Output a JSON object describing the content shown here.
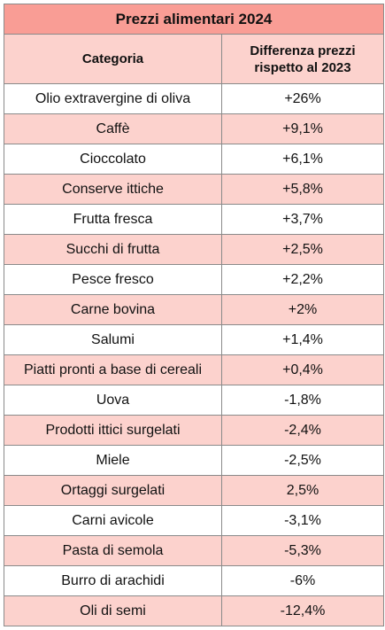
{
  "title": "Prezzi alimentari 2024",
  "headers": {
    "category": "Categoria",
    "difference_line1": "Differenza prezzi",
    "difference_line2": "rispetto al 2023"
  },
  "rows": [
    {
      "category": "Olio extravergine di oliva",
      "difference": "+26%"
    },
    {
      "category": "Caffè",
      "difference": "+9,1%"
    },
    {
      "category": "Cioccolato",
      "difference": "+6,1%"
    },
    {
      "category": "Conserve ittiche",
      "difference": "+5,8%"
    },
    {
      "category": "Frutta fresca",
      "difference": "+3,7%"
    },
    {
      "category": "Succhi di frutta",
      "difference": "+2,5%"
    },
    {
      "category": "Pesce fresco",
      "difference": "+2,2%"
    },
    {
      "category": "Carne bovina",
      "difference": "+2%"
    },
    {
      "category": "Salumi",
      "difference": "+1,4%"
    },
    {
      "category": "Piatti pronti a base di cereali",
      "difference": "+0,4%"
    },
    {
      "category": "Uova",
      "difference": "-1,8%"
    },
    {
      "category": "Prodotti ittici surgelati",
      "difference": "-2,4%"
    },
    {
      "category": "Miele",
      "difference": "-2,5%"
    },
    {
      "category": "Ortaggi surgelati",
      "difference": "2,5%"
    },
    {
      "category": "Carni avicole",
      "difference": "-3,1%"
    },
    {
      "category": "Pasta di semola",
      "difference": "-5,3%"
    },
    {
      "category": "Burro di arachidi",
      "difference": "-6%"
    },
    {
      "category": "Oli di semi",
      "difference": "-12,4%"
    }
  ],
  "colors": {
    "title_background": "#f99d95",
    "stripe_background": "#fcd2cd",
    "row_background": "#ffffff",
    "border": "#8a8a8a"
  }
}
